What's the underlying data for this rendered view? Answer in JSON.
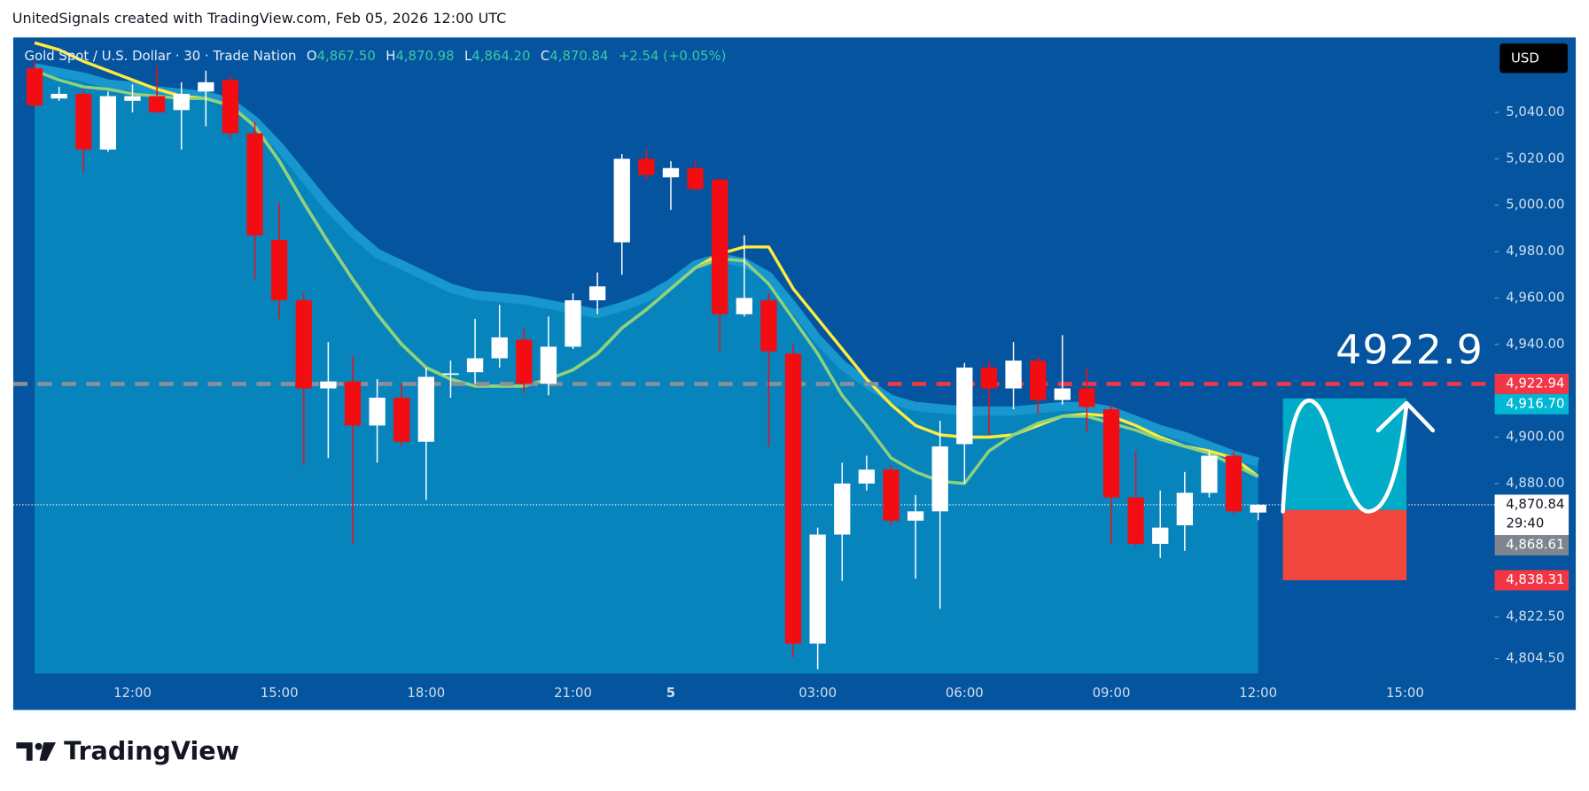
{
  "header": {
    "text": "UnitedSignals created with TradingView.com, Feb 05, 2026 12:00 UTC"
  },
  "chart_data": {
    "type": "candlestick",
    "title": "Gold Spot / U.S. Dollar · 30 · Trade Nation",
    "ohlc_legend": [
      {
        "key": "O",
        "value": "4,867.50"
      },
      {
        "key": "H",
        "value": "4,870.98"
      },
      {
        "key": "L",
        "value": "4,864.20"
      },
      {
        "key": "C",
        "value": "4,870.84"
      }
    ],
    "change": "+2.54 (+0.05%)",
    "currency": "USD",
    "categories": [
      null,
      null,
      null,
      null,
      "12:00",
      null,
      null,
      null,
      null,
      null,
      "15:00",
      null,
      null,
      null,
      null,
      null,
      "18:00",
      null,
      null,
      null,
      null,
      null,
      "21:00",
      null,
      null,
      null,
      "5",
      null,
      null,
      null,
      null,
      null,
      "03:00",
      null,
      null,
      null,
      null,
      null,
      "06:00",
      null,
      null,
      null,
      null,
      null,
      "09:00",
      null,
      null,
      null,
      null,
      null,
      "12:00",
      null,
      null,
      null,
      null,
      null,
      "15:00",
      null,
      null,
      null
    ],
    "open": [
      5059,
      5046,
      5048,
      5024,
      5045,
      5047,
      5041,
      5049,
      5054,
      5031,
      4985,
      4959,
      4921,
      4924,
      4905,
      4917,
      4898,
      4927,
      4928,
      4934,
      4942,
      4923,
      4939,
      4959,
      4984,
      5020,
      5012,
      5016,
      5011,
      4953,
      4959,
      4936,
      4811,
      4858,
      4880,
      4886,
      4864,
      4868,
      4897,
      4930,
      4921,
      4933,
      4916,
      4921,
      4912,
      4874,
      4854,
      4862,
      4876,
      4892,
      4867.5,
      null,
      null,
      null,
      null,
      null,
      null,
      null,
      null,
      null
    ],
    "high": [
      5062,
      5051,
      5050,
      5049,
      5052,
      5060,
      5053,
      5058,
      5056,
      5036,
      5001,
      4962,
      4941,
      4935,
      4925,
      4923,
      4930,
      4933,
      4951,
      4957,
      4947,
      4952,
      4962,
      4971,
      5022,
      5024,
      5019,
      5019,
      5012,
      4987,
      4962,
      4940,
      4861,
      4889,
      4892,
      4888,
      4875,
      4907,
      4932,
      4933,
      4941,
      4935,
      4944,
      4930,
      4914,
      4894,
      4877,
      4885,
      4894,
      4894,
      4870.98,
      null,
      null,
      null,
      null,
      null,
      null,
      null,
      null,
      null
    ],
    "low": [
      5042,
      5045,
      5014,
      5023,
      5040,
      5040,
      5024,
      5034,
      5029,
      4968,
      4951,
      4888,
      4891,
      4854,
      4889,
      4896,
      4873,
      4917,
      4923,
      4930,
      4919,
      4918,
      4938,
      4953,
      4970,
      5011,
      4998,
      5006,
      4937,
      4952,
      4896,
      4805,
      4800,
      4838,
      4877,
      4862,
      4839,
      4826,
      4880,
      4901,
      4912,
      4910,
      4914,
      4902,
      4854,
      4853,
      4848,
      4851,
      4874,
      4867,
      4864.2,
      null,
      null,
      null,
      null,
      null,
      null,
      null,
      null,
      null
    ],
    "close": [
      5043,
      5048,
      5024,
      5047,
      5047,
      5040,
      5048,
      5053,
      5031,
      4987,
      4959,
      4921,
      4924,
      4905,
      4917,
      4898,
      4926,
      4927.5,
      4934,
      4943,
      4923,
      4939,
      4959,
      4965,
      5020,
      5013,
      5016,
      5007,
      4953,
      4960,
      4937,
      4811,
      4858,
      4880,
      4886,
      4864,
      4868,
      4896,
      4930,
      4921,
      4933,
      4916,
      4921,
      4913,
      4874,
      4854,
      4861,
      4876,
      4892,
      4868,
      4870.84,
      null,
      null,
      null,
      null,
      null,
      null,
      null,
      null,
      null
    ],
    "up_color": "#ffffff",
    "down_color": "#f20d12",
    "overlays": [
      {
        "type": "area",
        "color": "#0884bd",
        "values": [
          5061,
          5059,
          5057,
          5054,
          5053,
          5051,
          5050,
          5049,
          5046,
          5038,
          5027,
          5014,
          5001,
          4990,
          4981,
          4976,
          4971,
          4966,
          4963,
          4962,
          4961,
          4959,
          4957,
          4955,
          4958,
          4962,
          4968,
          4976,
          4979,
          4977,
          4971,
          4958,
          4944,
          4933,
          4925,
          4918,
          4915,
          4914,
          4913,
          4913,
          4913,
          4914,
          4915,
          4915,
          4913,
          4909,
          4905,
          4902,
          4898,
          4894,
          4891,
          null,
          null,
          null,
          null,
          null,
          null,
          null,
          null,
          null
        ]
      },
      {
        "type": "line",
        "color": "#ffeb3b",
        "values": [
          5070,
          5067,
          5062,
          5058,
          5054,
          5050,
          5047,
          5046,
          5043,
          5034,
          5019,
          5001,
          4984,
          4968,
          4953,
          4940,
          4930,
          4925,
          4922,
          4922,
          4922,
          4925,
          4929,
          4936,
          4947,
          4955,
          4964,
          4973,
          4979,
          4982,
          4982,
          4964,
          4951,
          4938,
          4925,
          4914,
          4905,
          4901,
          4900,
          4900,
          4901,
          4905,
          4909,
          4910,
          4909,
          4905,
          4900,
          4896,
          4894,
          4891,
          4883,
          null,
          null,
          null,
          null,
          null,
          null,
          null,
          null,
          null
        ]
      },
      {
        "type": "line",
        "color": "#8fd27c",
        "values": [
          5058,
          5054,
          5051,
          5050,
          5048,
          5047,
          5046,
          5046,
          5043,
          5034,
          5019,
          5001,
          4984,
          4968,
          4953,
          4940,
          4930,
          4925,
          4922,
          4922,
          4922,
          4925,
          4929,
          4936,
          4947,
          4955,
          4964,
          4973,
          4977,
          4976,
          4966,
          4951,
          4936,
          4918,
          4905,
          4891,
          4885,
          4881,
          4880,
          4894,
          4901,
          4906,
          4909,
          4909,
          4906,
          4903,
          4899,
          4896,
          4893,
          4888,
          4883,
          null,
          null,
          null,
          null,
          null,
          null,
          null,
          null,
          null
        ]
      }
    ],
    "ylim": [
      4798.1,
      5072.3
    ],
    "yticks": [
      {
        "value": 5040,
        "label": "5,040.00"
      },
      {
        "value": 5020,
        "label": "5,020.00"
      },
      {
        "value": 5000,
        "label": "5,000.00"
      },
      {
        "value": 4980,
        "label": "4,980.00"
      },
      {
        "value": 4960,
        "label": "4,960.00"
      },
      {
        "value": 4940,
        "label": "4,940.00"
      },
      {
        "value": 4900,
        "label": "4,900.00"
      },
      {
        "value": 4880,
        "label": "4,880.00"
      },
      {
        "value": 4822.5,
        "label": "4,822.50"
      },
      {
        "value": 4804.5,
        "label": "4,804.50"
      }
    ],
    "price_labels": [
      {
        "value": 4922.94,
        "label": "4,922.94",
        "color": "#f23645"
      },
      {
        "value": 4916.7,
        "label": "4,916.70",
        "color": "#00b8d4"
      },
      {
        "value": 4870.84,
        "label": "4,870.84",
        "color": "#ffffff"
      },
      {
        "value": 4868.61,
        "label": "4,868.61",
        "color": "#7f858f"
      },
      {
        "value": 4838.31,
        "label": "4,838.31",
        "color": "#f23645"
      }
    ],
    "countdown": "29:40",
    "annotation": "4922.9"
  },
  "footer": {
    "brand": "TradingView"
  }
}
